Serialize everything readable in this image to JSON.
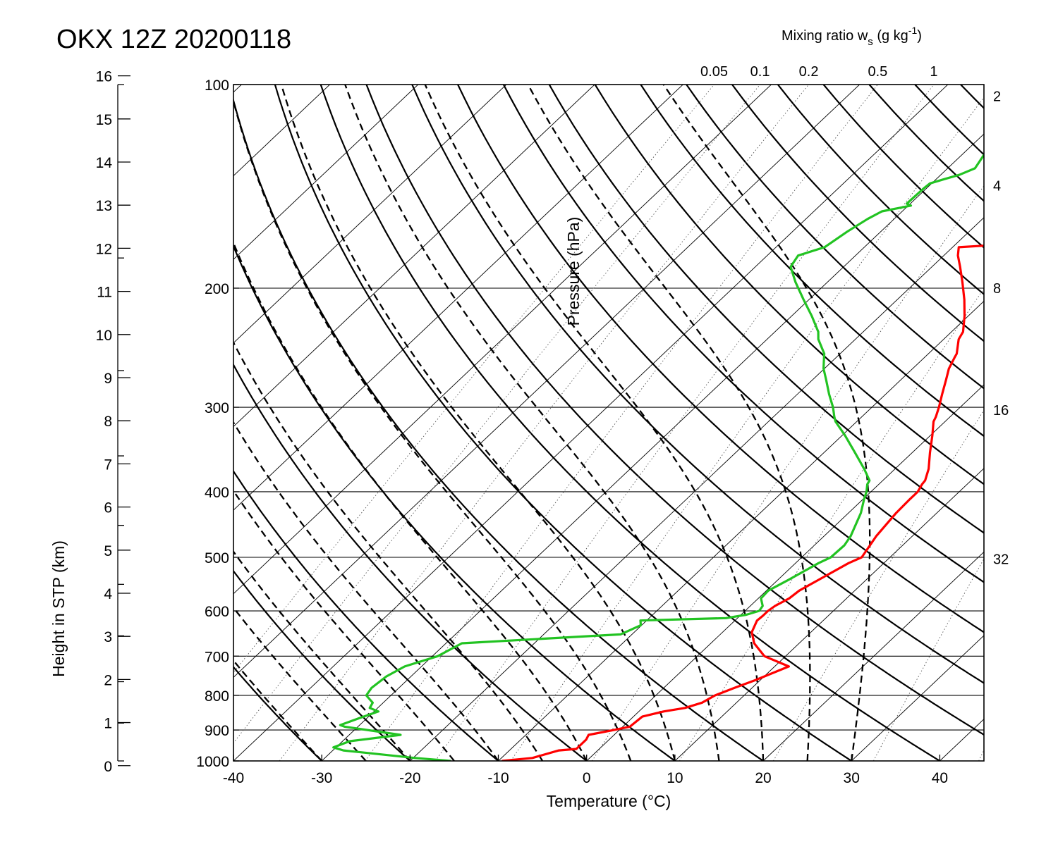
{
  "chart_data": {
    "type": "line",
    "title": "OKX 12Z 20200118",
    "xlabel": "Temperature (°C)",
    "ylabel_right_overlay": "Pressure (hPa)",
    "ylabel_left": "Height in STP (km)",
    "mixing_ratio_title": "Mixing ratio w",
    "mixing_ratio_sub": "s",
    "mixing_ratio_unit_pre": " (g kg",
    "mixing_ratio_unit_sup": "-1",
    "mixing_ratio_unit_post": ")",
    "xlim": [
      -40,
      45
    ],
    "plim": [
      100,
      1000
    ],
    "x_ticks": [
      "-40",
      "-30",
      "-20",
      "-10",
      "0",
      "10",
      "20",
      "30",
      "40"
    ],
    "pressure_ticks": [
      "100",
      "200",
      "300",
      "400",
      "500",
      "600",
      "700",
      "800",
      "900",
      "1000"
    ],
    "height_ticks": [
      "0",
      "1",
      "2",
      "3",
      "4",
      "5",
      "6",
      "7",
      "8",
      "9",
      "10",
      "11",
      "12",
      "13",
      "14",
      "15",
      "16"
    ],
    "mixing_ratio_top_labels": [
      "0.05",
      "0.1",
      "0.2",
      "0.5",
      "1"
    ],
    "mixing_ratio_right_labels": [
      "2",
      "4",
      "8",
      "16",
      "32"
    ],
    "grid": true,
    "series": [
      {
        "role": "temperature",
        "color": "#ff0000",
        "points": [
          [
            -9.6,
            1000
          ],
          [
            -6.5,
            990
          ],
          [
            -4.4,
            965
          ],
          [
            -2.6,
            960
          ],
          [
            -2.6,
            930
          ],
          [
            -2.9,
            915
          ],
          [
            -0.6,
            900
          ],
          [
            0.8,
            890
          ],
          [
            1,
            860
          ],
          [
            2.8,
            845
          ],
          [
            4.8,
            835
          ],
          [
            6.1,
            820
          ],
          [
            6.7,
            800
          ],
          [
            8,
            780
          ],
          [
            9.4,
            760
          ],
          [
            11.6,
            725
          ],
          [
            7.6,
            700
          ],
          [
            4.9,
            670
          ],
          [
            3.3,
            645
          ],
          [
            2.5,
            620
          ],
          [
            2.6,
            610
          ],
          [
            2.6,
            600
          ],
          [
            2.8,
            590
          ],
          [
            3.5,
            575
          ],
          [
            3.7,
            560
          ],
          [
            4.6,
            540
          ],
          [
            6,
            510
          ],
          [
            6.8,
            500
          ],
          [
            6.3,
            480
          ],
          [
            5.9,
            465
          ],
          [
            5.4,
            430
          ],
          [
            5.3,
            410
          ],
          [
            5.3,
            400
          ],
          [
            4.9,
            390
          ],
          [
            4.8,
            385
          ],
          [
            3.8,
            370
          ],
          [
            2,
            350
          ],
          [
            0.2,
            330
          ],
          [
            -1.3,
            315
          ],
          [
            -1.6,
            310
          ],
          [
            -2.4,
            300
          ],
          [
            -3.6,
            287
          ],
          [
            -4.9,
            273
          ],
          [
            -5.9,
            263
          ],
          [
            -6.6,
            253
          ],
          [
            -6.8,
            250
          ],
          [
            -8.3,
            238
          ],
          [
            -8.7,
            232
          ],
          [
            -10.4,
            220
          ],
          [
            -12.4,
            208
          ],
          [
            -14.7,
            196
          ],
          [
            -16.8,
            186
          ],
          [
            -18.4,
            179
          ],
          [
            -19.3,
            174
          ],
          [
            -16.4,
            173
          ],
          [
            -14.4,
            165
          ],
          [
            -11.3,
            158
          ],
          [
            -8.5,
            154
          ],
          [
            -6.5,
            151
          ],
          [
            -5.4,
            150
          ],
          [
            -7.7,
            142
          ],
          [
            -7.5,
            140
          ],
          [
            -8.2,
            138
          ],
          [
            -7.8,
            136
          ],
          [
            -5,
            133
          ],
          [
            -5.1,
            127
          ],
          [
            -5.6,
            124
          ],
          [
            -6.1,
            120
          ],
          [
            -6.2,
            117
          ],
          [
            -5.2,
            115
          ],
          [
            -5.3,
            111
          ],
          [
            -5.6,
            108
          ],
          [
            -5.8,
            106
          ],
          [
            -4.2,
            103
          ],
          [
            -4.3,
            100
          ]
        ]
      },
      {
        "role": "dewpoint",
        "color": "#22c322",
        "points": [
          [
            -15.4,
            1000
          ],
          [
            -19.8,
            990
          ],
          [
            -28.8,
            965
          ],
          [
            -30.3,
            955
          ],
          [
            -29.2,
            935
          ],
          [
            -24.2,
            915
          ],
          [
            -31.5,
            890
          ],
          [
            -32.2,
            885
          ],
          [
            -30.9,
            865
          ],
          [
            -29.5,
            845
          ],
          [
            -30.9,
            835
          ],
          [
            -31.2,
            820
          ],
          [
            -32.8,
            800
          ],
          [
            -33.1,
            780
          ],
          [
            -32.8,
            750
          ],
          [
            -31.9,
            725
          ],
          [
            -29.4,
            700
          ],
          [
            -28.2,
            670
          ],
          [
            -11.3,
            650
          ],
          [
            -10.1,
            630
          ],
          [
            -10.7,
            620
          ],
          [
            -1.3,
            615
          ],
          [
            0.6,
            608
          ],
          [
            1.6,
            600
          ],
          [
            1.4,
            590
          ],
          [
            0.3,
            575
          ],
          [
            0.2,
            560
          ],
          [
            1.2,
            540
          ],
          [
            2.6,
            510
          ],
          [
            3.3,
            500
          ],
          [
            3.4,
            480
          ],
          [
            3,
            465
          ],
          [
            1.4,
            430
          ],
          [
            0.1,
            410
          ],
          [
            -0.5,
            400
          ],
          [
            -1.3,
            390
          ],
          [
            -1.5,
            385
          ],
          [
            -3.5,
            370
          ],
          [
            -6.5,
            350
          ],
          [
            -9.7,
            330
          ],
          [
            -12.4,
            315
          ],
          [
            -13.1,
            310
          ],
          [
            -14.4,
            300
          ],
          [
            -16.4,
            287
          ],
          [
            -18.5,
            273
          ],
          [
            -20.1,
            263
          ],
          [
            -21.4,
            253
          ],
          [
            -21.8,
            250
          ],
          [
            -24.2,
            238
          ],
          [
            -25.1,
            232
          ],
          [
            -27.7,
            220
          ],
          [
            -30.6,
            208
          ],
          [
            -33.6,
            196
          ],
          [
            -36,
            186
          ],
          [
            -36.5,
            179
          ],
          [
            -34.5,
            174
          ],
          [
            -33.8,
            165
          ],
          [
            -33,
            158
          ],
          [
            -32.3,
            154
          ],
          [
            -29.7,
            151
          ],
          [
            -30.4,
            150
          ],
          [
            -30.3,
            142
          ],
          [
            -30.2,
            140
          ],
          [
            -29.1,
            138
          ],
          [
            -27.9,
            136
          ],
          [
            -26.9,
            133
          ],
          [
            -27.5,
            127
          ],
          [
            -26.6,
            124
          ],
          [
            -23.5,
            120
          ],
          [
            -23.2,
            117
          ],
          [
            -22.1,
            115
          ],
          [
            -22.1,
            111
          ],
          [
            -20.8,
            108
          ],
          [
            -20.4,
            106
          ],
          [
            -18.5,
            103
          ],
          [
            -17.8,
            100
          ]
        ]
      }
    ]
  }
}
